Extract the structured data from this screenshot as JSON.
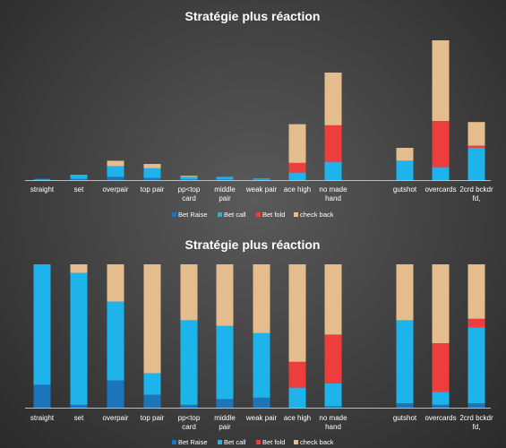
{
  "chart_data": [
    {
      "type": "bar",
      "stacked": true,
      "title": "Stratégie plus réaction",
      "categories": [
        "straight",
        "set",
        "overpair",
        "top pair",
        "pp<top card",
        "middle pair",
        "weak pair",
        "ace high",
        "no made hand",
        "",
        "gutshot",
        "overcards",
        "2crd bckdr fd,"
      ],
      "category_lines": [
        [
          "straight"
        ],
        [
          "set"
        ],
        [
          "overpair"
        ],
        [
          "top pair"
        ],
        [
          "pp<top",
          "card"
        ],
        [
          "middle",
          "pair"
        ],
        [
          "weak pair"
        ],
        [
          "ace high"
        ],
        [
          "no made",
          "hand"
        ],
        [],
        [
          "gutshot"
        ],
        [
          "overcards"
        ],
        [
          "2crd bckdr",
          "fd,"
        ]
      ],
      "series": [
        {
          "name": "Bet Raise",
          "color": "#1b75bb",
          "values": [
            0.3,
            1,
            3,
            2,
            0.5,
            0.5,
            0.3,
            0,
            0,
            0,
            0,
            0,
            0
          ]
        },
        {
          "name": "Bet call",
          "color": "#1fb3ec",
          "values": [
            0.7,
            4,
            10,
            9,
            2.5,
            2.5,
            1.2,
            7,
            17,
            0,
            18,
            12,
            30
          ]
        },
        {
          "name": "Bet fold",
          "color": "#ee3d3d",
          "values": [
            0,
            0,
            0,
            0,
            0,
            0,
            0,
            9,
            34,
            0,
            0,
            43,
            2
          ]
        },
        {
          "name": "check back",
          "color": "#e3bd8d",
          "values": [
            0,
            0,
            5,
            4,
            1,
            0,
            0,
            36,
            49,
            0,
            12,
            75,
            22
          ]
        }
      ],
      "ylim": [
        0,
        130
      ],
      "grid": false,
      "legend": "bottom"
    },
    {
      "type": "bar",
      "stacked": true,
      "percent": true,
      "title": "Stratégie plus réaction",
      "categories": [
        "straight",
        "set",
        "overpair",
        "top pair",
        "pp<top card",
        "middle pair",
        "weak pair",
        "ace high",
        "no made hand",
        "",
        "gutshot",
        "overcards",
        "2crd bckdr fd,"
      ],
      "category_lines": [
        [
          "straight"
        ],
        [
          "set"
        ],
        [
          "overpair"
        ],
        [
          "top pair"
        ],
        [
          "pp<top",
          "card"
        ],
        [
          "middle",
          "pair"
        ],
        [
          "weak pair"
        ],
        [
          "ace high"
        ],
        [
          "no made",
          "hand"
        ],
        [],
        [
          "gutshot"
        ],
        [
          "overcards"
        ],
        [
          "2crd bckdr",
          "fd,"
        ]
      ],
      "series": [
        {
          "name": "Bet Raise",
          "color": "#1b75bb",
          "values": [
            16,
            2,
            19,
            9,
            2,
            6,
            7,
            0,
            1,
            0,
            3,
            2,
            3
          ]
        },
        {
          "name": "Bet call",
          "color": "#1fb3ec",
          "values": [
            84,
            92,
            55,
            15,
            59,
            51,
            45,
            14,
            16,
            0,
            58,
            9,
            53
          ]
        },
        {
          "name": "Bet fold",
          "color": "#ee3d3d",
          "values": [
            0,
            0,
            0,
            0,
            0,
            0,
            0,
            18,
            34,
            0,
            0,
            34,
            6
          ]
        },
        {
          "name": "check back",
          "color": "#e3bd8d",
          "values": [
            0,
            6,
            26,
            76,
            39,
            43,
            48,
            68,
            49,
            0,
            39,
            55,
            38
          ]
        }
      ],
      "ylim": [
        0,
        100
      ],
      "grid": false,
      "legend": "bottom"
    }
  ]
}
